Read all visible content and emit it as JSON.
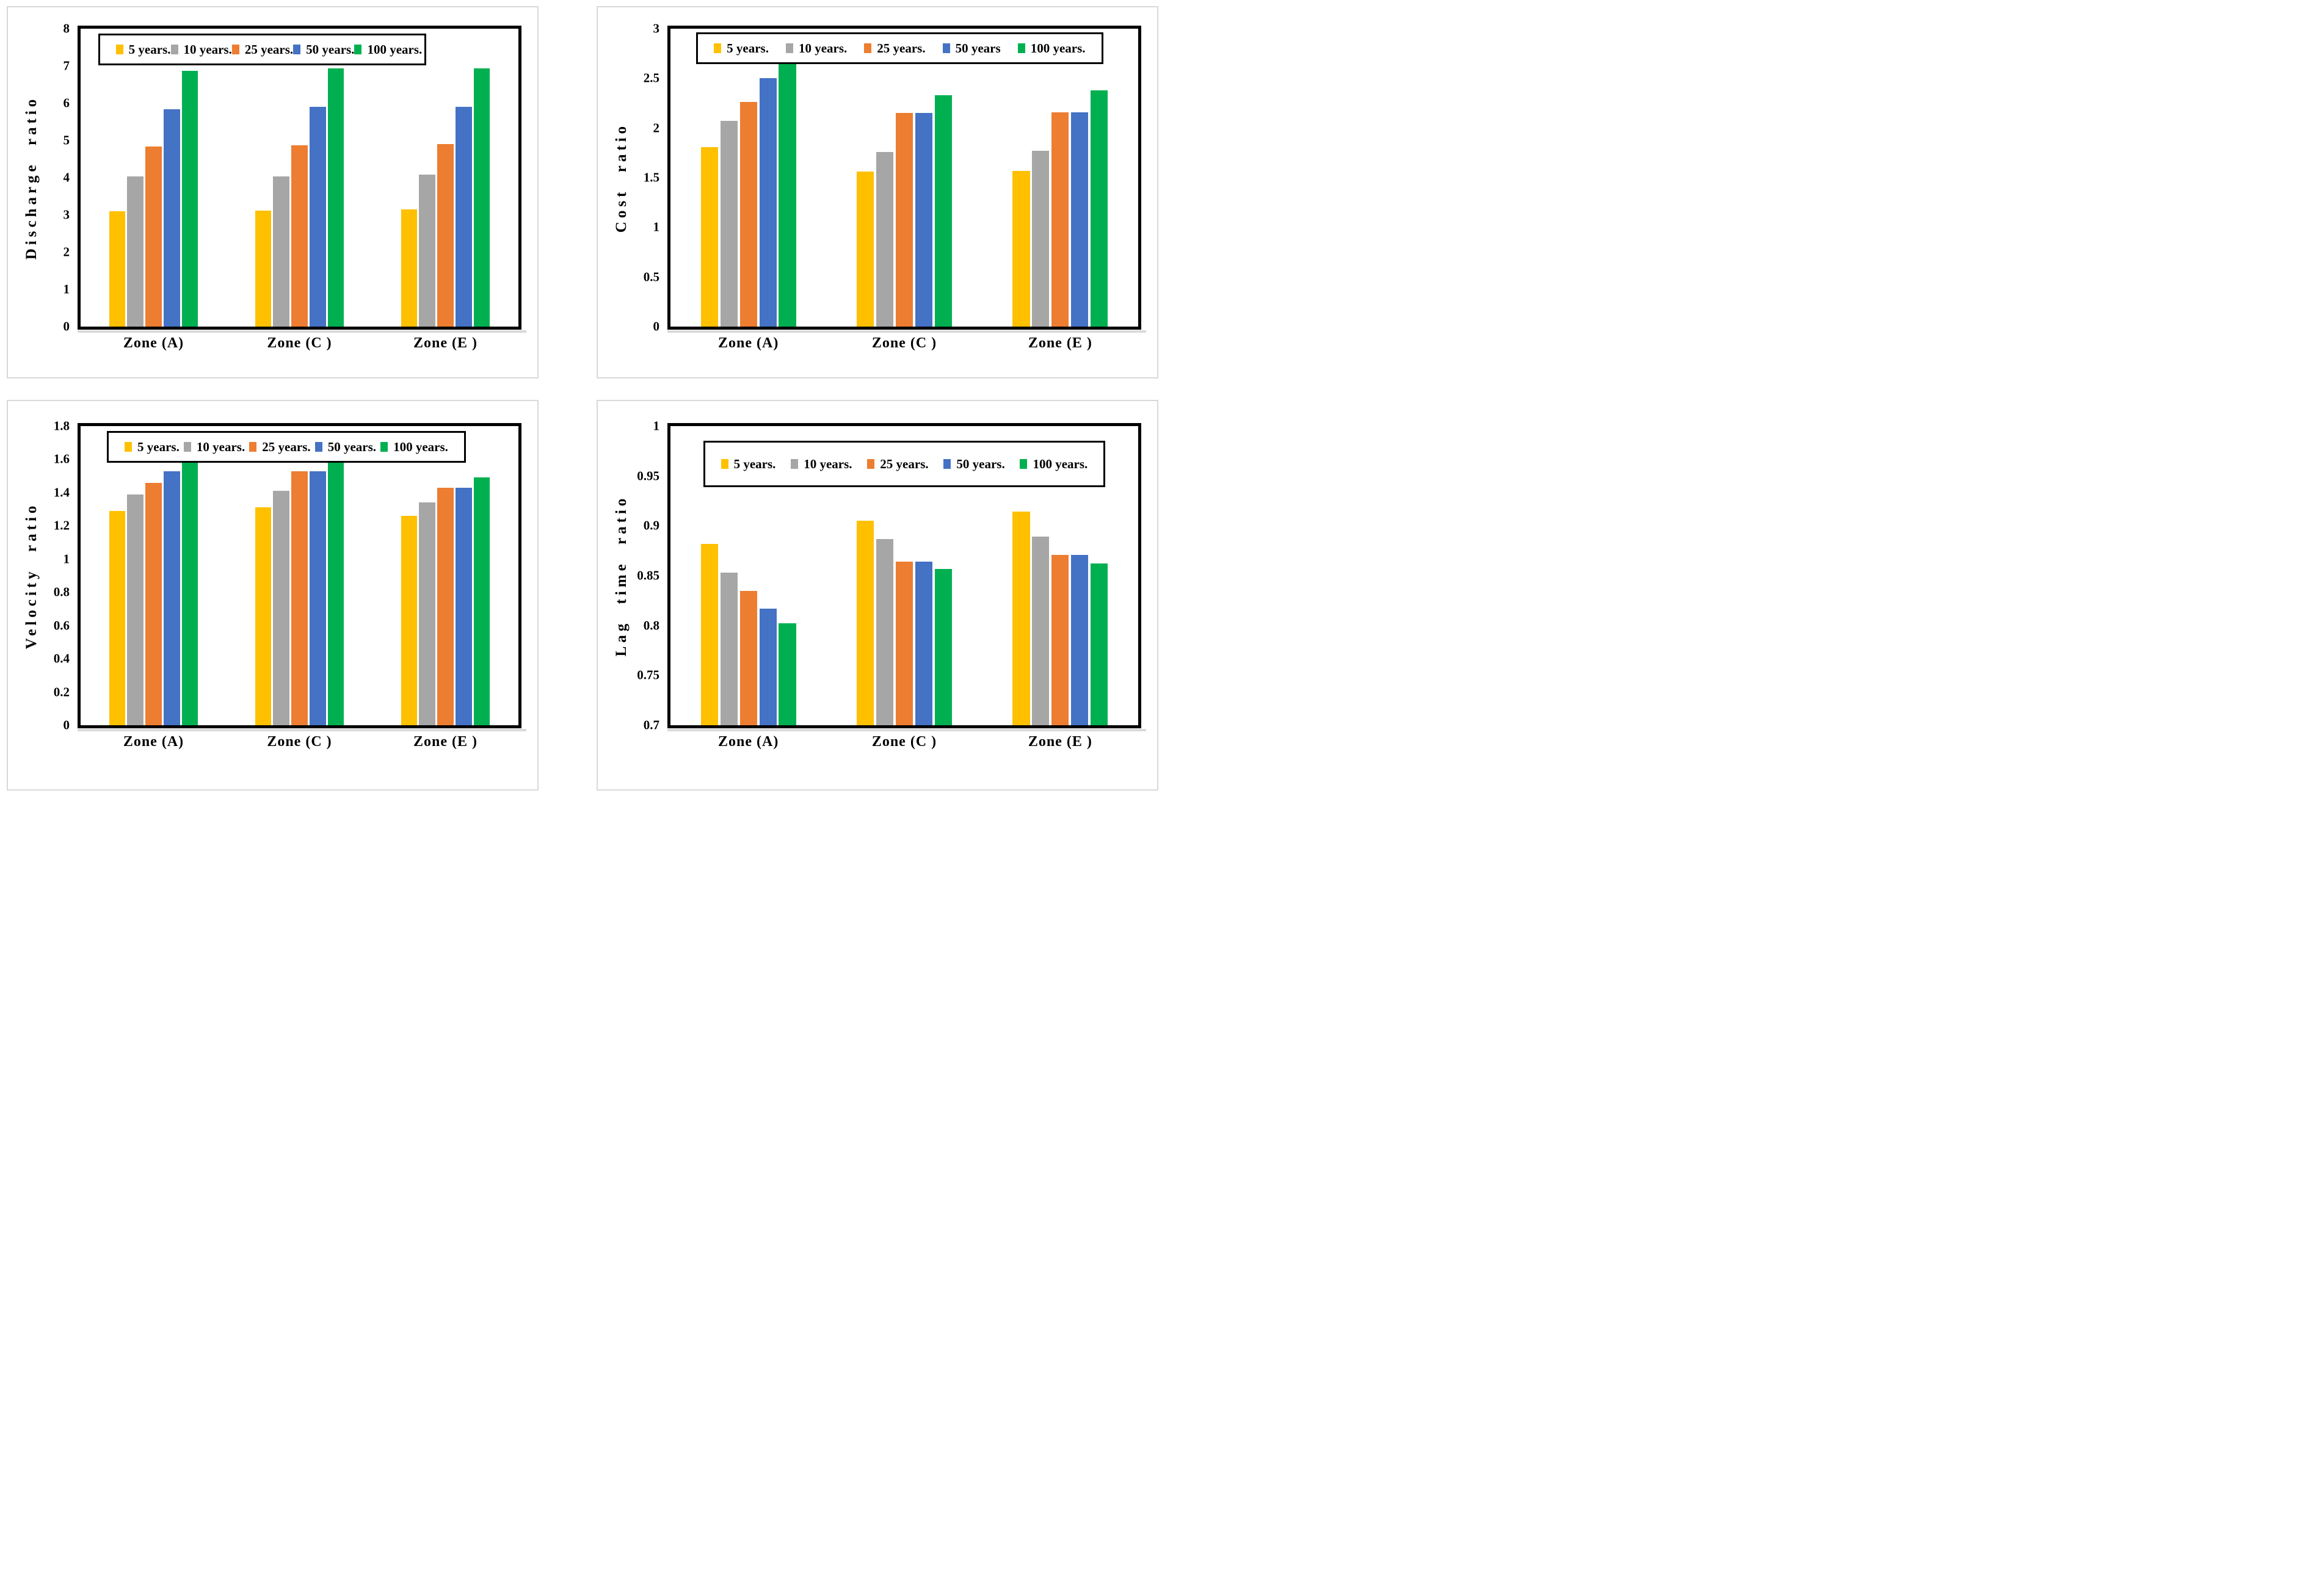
{
  "page": {
    "background": "#FFFFFF",
    "panel_border_color": "#D9D9D9",
    "axis_color": "#000000",
    "legend_border_color": "#000000"
  },
  "chart_data": [
    {
      "type": "bar",
      "position": "top-left",
      "title": "",
      "xlabel": "",
      "ylabel": "Discharge ratio",
      "categories": [
        "Zone (A)",
        "Zone (C )",
        "Zone (E )"
      ],
      "series": [
        {
          "name": "5 years.",
          "color": "#FFC000",
          "values": [
            3.1,
            3.11,
            3.14
          ]
        },
        {
          "name": "10 years.",
          "color": "#A6A6A6",
          "values": [
            4.03,
            4.04,
            4.09
          ]
        },
        {
          "name": "25 years.",
          "color": "#ED7D31",
          "values": [
            4.83,
            4.87,
            4.9
          ]
        },
        {
          "name": "50 years.",
          "color": "#4472C4",
          "values": [
            5.83,
            5.91,
            5.91
          ]
        },
        {
          "name": "100 years.",
          "color": "#00B050",
          "values": [
            6.87,
            6.93,
            6.93
          ]
        }
      ],
      "ylim": [
        0,
        8
      ],
      "yticks": [
        "0",
        "1",
        "2",
        "3",
        "4",
        "5",
        "6",
        "7",
        "8"
      ],
      "grid": false,
      "legend_position": "top-inside"
    },
    {
      "type": "bar",
      "position": "top-right",
      "title": "",
      "xlabel": "",
      "ylabel": "Cost ratio",
      "categories": [
        "Zone (A)",
        "Zone (C )",
        "Zone (E )"
      ],
      "series": [
        {
          "name": "5 years.",
          "color": "#FFC000",
          "values": [
            1.81,
            1.56,
            1.57
          ]
        },
        {
          "name": "10 years.",
          "color": "#A6A6A6",
          "values": [
            2.07,
            1.76,
            1.77
          ]
        },
        {
          "name": "25 years.",
          "color": "#ED7D31",
          "values": [
            2.26,
            2.15,
            2.16
          ]
        },
        {
          "name": "50 years",
          "color": "#4472C4",
          "values": [
            2.5,
            2.15,
            2.16
          ]
        },
        {
          "name": "100 years.",
          "color": "#00B050",
          "values": [
            2.73,
            2.33,
            2.38
          ]
        }
      ],
      "ylim": [
        0,
        3
      ],
      "yticks": [
        "0",
        "0.5",
        "1",
        "1.5",
        "2",
        "2.5",
        "3"
      ],
      "grid": false,
      "legend_position": "top-inside"
    },
    {
      "type": "bar",
      "position": "bottom-left",
      "title": "",
      "xlabel": "",
      "ylabel": "Velocity ratio",
      "categories": [
        "Zone (A)",
        "Zone (C )",
        "Zone (E )"
      ],
      "series": [
        {
          "name": "5 years.",
          "color": "#FFC000",
          "values": [
            1.29,
            1.31,
            1.26
          ]
        },
        {
          "name": "10 years.",
          "color": "#A6A6A6",
          "values": [
            1.39,
            1.41,
            1.34
          ]
        },
        {
          "name": "25 years.",
          "color": "#ED7D31",
          "values": [
            1.46,
            1.53,
            1.43
          ]
        },
        {
          "name": "50 years.",
          "color": "#4472C4",
          "values": [
            1.53,
            1.53,
            1.43
          ]
        },
        {
          "name": "100 years.",
          "color": "#00B050",
          "values": [
            1.6,
            1.59,
            1.49
          ]
        }
      ],
      "ylim": [
        0,
        1.8
      ],
      "yticks": [
        "0",
        "0.2",
        "0.4",
        "0.6",
        "0.8",
        "1",
        "1.2",
        "1.4",
        "1.6",
        "1.8"
      ],
      "grid": false,
      "legend_position": "top-inside"
    },
    {
      "type": "bar",
      "position": "bottom-right",
      "title": "",
      "xlabel": "",
      "ylabel": "Lag time ratio",
      "categories": [
        "Zone (A)",
        "Zone (C )",
        "Zone (E )"
      ],
      "series": [
        {
          "name": "5 years.",
          "color": "#FFC000",
          "values": [
            0.882,
            0.905,
            0.914
          ]
        },
        {
          "name": "10 years.",
          "color": "#A6A6A6",
          "values": [
            0.853,
            0.887,
            0.889
          ]
        },
        {
          "name": "25 years.",
          "color": "#ED7D31",
          "values": [
            0.835,
            0.864,
            0.871
          ]
        },
        {
          "name": "50 years.",
          "color": "#4472C4",
          "values": [
            0.817,
            0.864,
            0.871
          ]
        },
        {
          "name": "100 years.",
          "color": "#00B050",
          "values": [
            0.802,
            0.857,
            0.862
          ]
        }
      ],
      "ylim": [
        0.7,
        1
      ],
      "yticks": [
        "0.7",
        "0.75",
        "0.8",
        "0.85",
        "0.9",
        "0.95",
        "1"
      ],
      "grid": false,
      "legend_position": "top-inside-offset"
    }
  ]
}
